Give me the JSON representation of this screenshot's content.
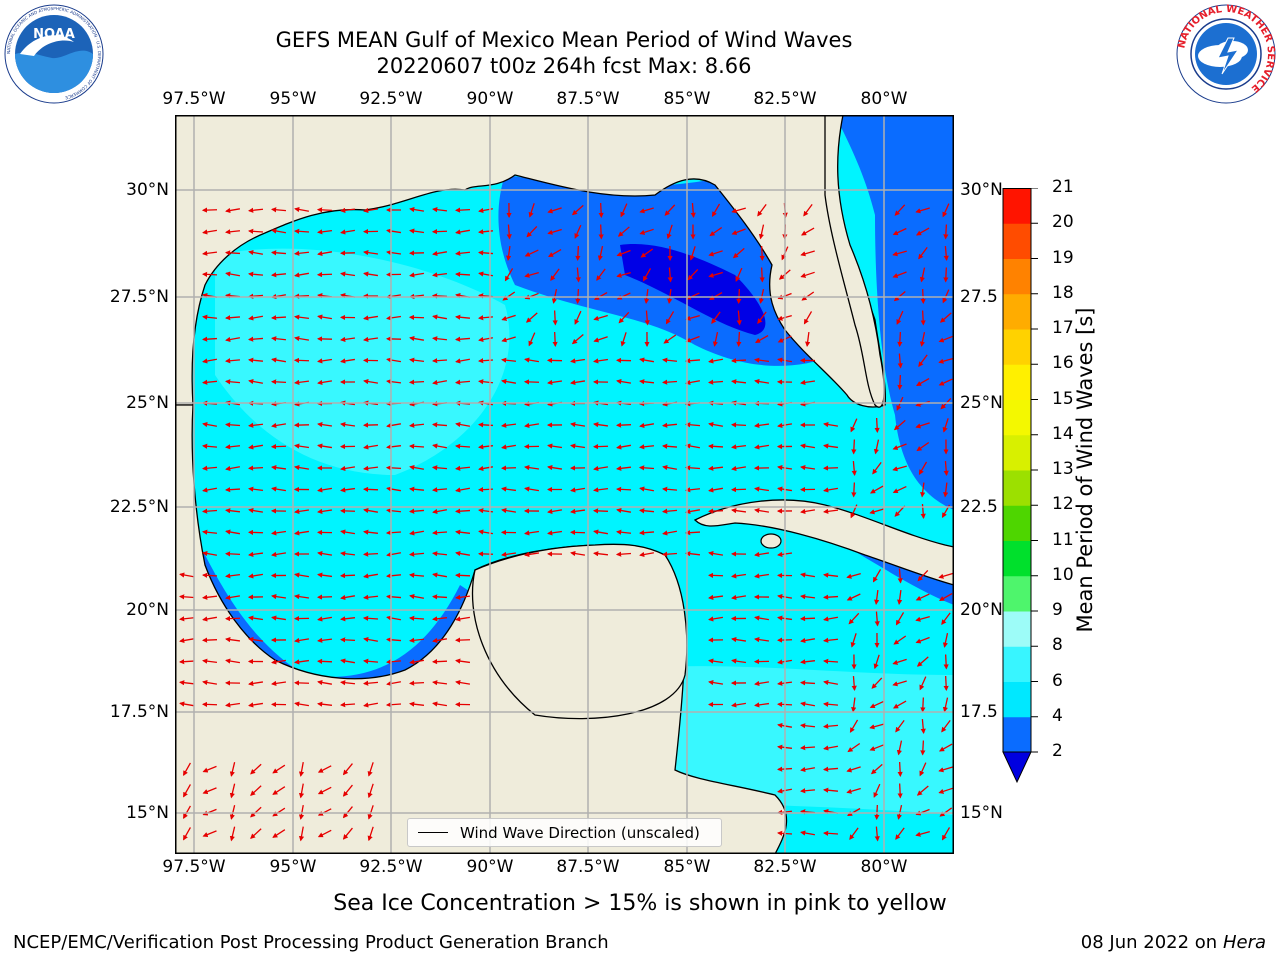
{
  "title": {
    "line1": "GEFS MEAN Gulf of Mexico Mean Period of Wind Waves",
    "line2": "20220607 t00z 264h fcst   Max: 8.66"
  },
  "logos": {
    "noaa": "NOAA",
    "noaa_ring": "NATIONAL OCEANIC AND ATMOSPHERIC ADMINISTRATION · U.S. DEPARTMENT OF COMMERCE",
    "nws_ring": "NATIONAL WEATHER SERVICE"
  },
  "axes": {
    "x_ticks": [
      "97.5°W",
      "95°W",
      "92.5°W",
      "90°W",
      "87.5°W",
      "85°W",
      "82.5°W",
      "80°W"
    ],
    "y_ticks_left": [
      "30°N",
      "27.5°N",
      "25°N",
      "22.5°N",
      "20°N",
      "17.5°N",
      "15°N"
    ],
    "y_ticks_right": [
      "30°N",
      "27.5",
      "25°N",
      "22.5",
      "20°N",
      "17.5",
      "15°N"
    ]
  },
  "colorbar": {
    "label": "Mean Period of Wind Waves [s]",
    "ticks": [
      "2",
      "4",
      "6",
      "8",
      "9",
      "10",
      "11",
      "12",
      "13",
      "14",
      "15",
      "16",
      "17",
      "18",
      "19",
      "20",
      "21"
    ],
    "colors": [
      "#0a6cff",
      "#00e8ff",
      "#38f5ff",
      "#9dfcf8",
      "#4ef56c",
      "#00e02c",
      "#4ed600",
      "#9ce000",
      "#d8f000",
      "#f4f800",
      "#fff000",
      "#ffd200",
      "#ffac00",
      "#ff8200",
      "#ff4c00",
      "#ff1400"
    ],
    "under_color": "#0000e0"
  },
  "legend": {
    "label": "Wind Wave Direction (unscaled)"
  },
  "map_colors": {
    "land": "#efecdb",
    "ocean_low": "#00f4ff",
    "ocean_mid": "#38f8ff",
    "ocean_high": "#0a6cff",
    "ocean_darkest": "#0000e6",
    "arrow": "#e60000"
  },
  "note": "Sea Ice Concentration > 15% is shown in pink to yellow",
  "footer": {
    "left": "NCEP/EMC/Verification Post Processing Product Generation Branch",
    "date": "08 Jun 2022 on",
    "host": "Hera"
  }
}
